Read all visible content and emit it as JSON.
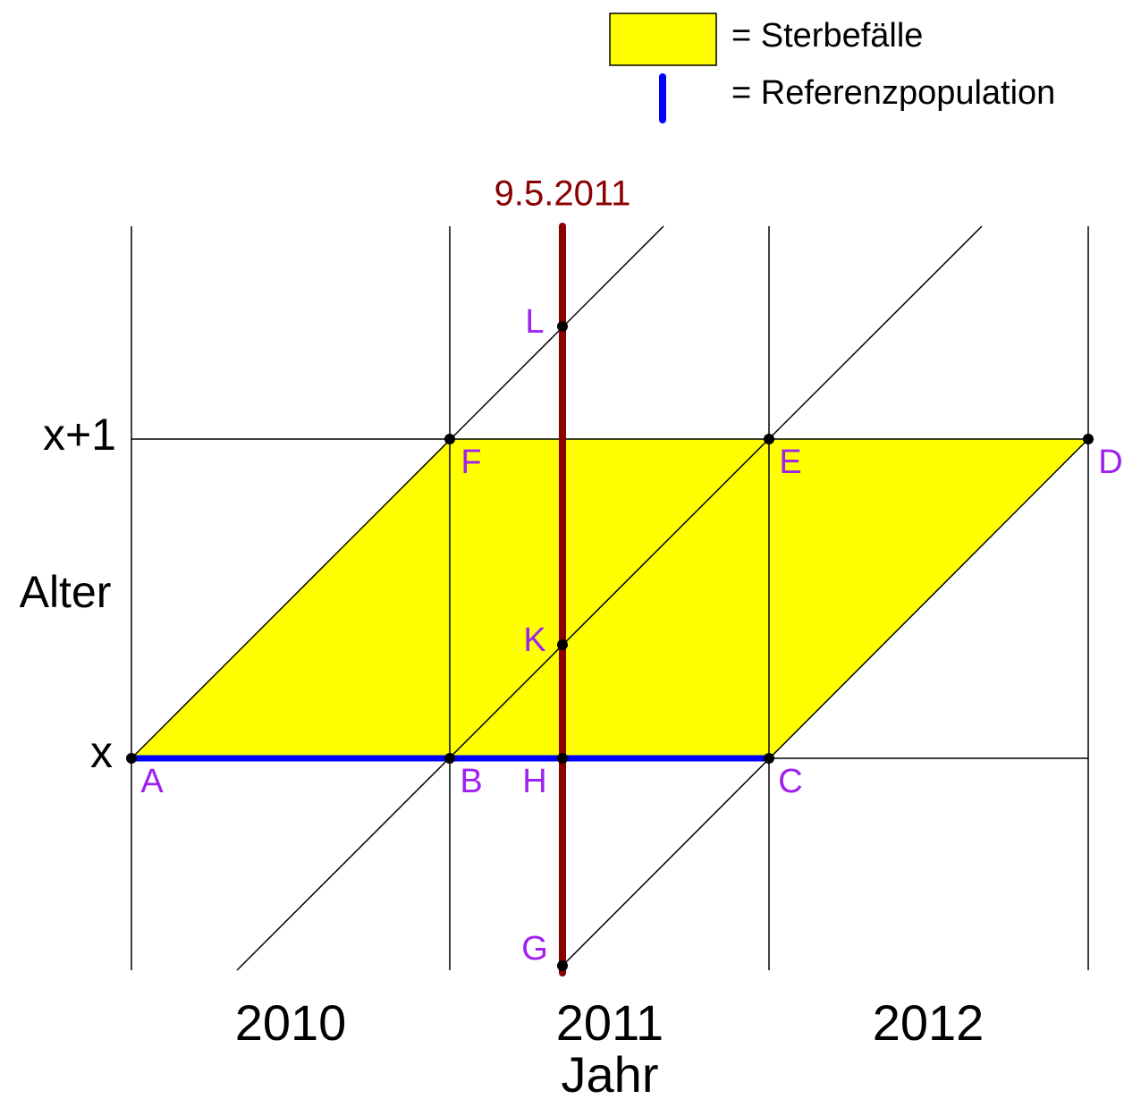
{
  "legend": [
    {
      "label": "= Sterbefälle"
    },
    {
      "label": "= Referenzpopulation"
    }
  ],
  "date_marker": "9.5.2011",
  "y_axis": {
    "title": "Alter",
    "labels": [
      "x+1",
      "x"
    ]
  },
  "x_axis": {
    "title": "Jahr",
    "labels": [
      "2010",
      "2011",
      "2012"
    ]
  },
  "points": [
    "A",
    "B",
    "H",
    "C",
    "F",
    "E",
    "D",
    "L",
    "K",
    "G"
  ]
}
